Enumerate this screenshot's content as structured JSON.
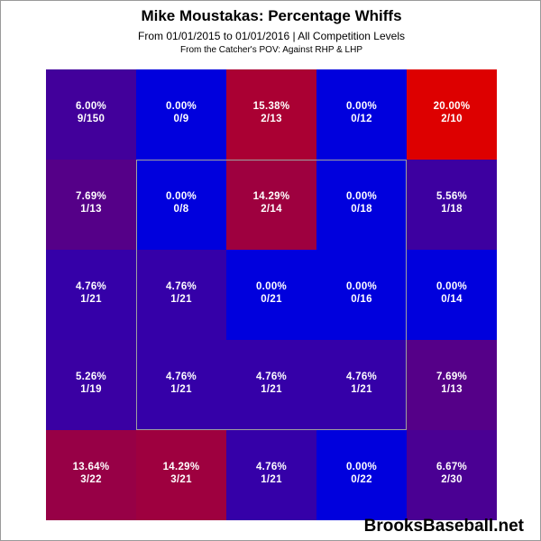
{
  "header": {
    "title": "Mike Moustakas: Percentage Whiffs",
    "subtitle": "From 01/01/2015 to 01/01/2016 | All Competition Levels",
    "subtitle2": "From the Catcher's POV:  Against RHP & LHP"
  },
  "watermark": "BrooksBaseball.net",
  "chart_data": {
    "type": "heatmap",
    "title": "Mike Moustakas: Percentage Whiffs",
    "rows": 5,
    "cols": 5,
    "strike_zone": {
      "rows": [
        1,
        3
      ],
      "cols": [
        1,
        3
      ]
    },
    "colors": {
      "low": "#0000dd",
      "high": "#dd0000"
    },
    "value_range": [
      0,
      20
    ],
    "cells": [
      [
        {
          "pct": 6.0,
          "pct_label": "6.00%",
          "count": "9/150"
        },
        {
          "pct": 0.0,
          "pct_label": "0.00%",
          "count": "0/9"
        },
        {
          "pct": 15.38,
          "pct_label": "15.38%",
          "count": "2/13"
        },
        {
          "pct": 0.0,
          "pct_label": "0.00%",
          "count": "0/12"
        },
        {
          "pct": 20.0,
          "pct_label": "20.00%",
          "count": "2/10"
        }
      ],
      [
        {
          "pct": 7.69,
          "pct_label": "7.69%",
          "count": "1/13"
        },
        {
          "pct": 0.0,
          "pct_label": "0.00%",
          "count": "0/8"
        },
        {
          "pct": 14.29,
          "pct_label": "14.29%",
          "count": "2/14"
        },
        {
          "pct": 0.0,
          "pct_label": "0.00%",
          "count": "0/18"
        },
        {
          "pct": 5.56,
          "pct_label": "5.56%",
          "count": "1/18"
        }
      ],
      [
        {
          "pct": 4.76,
          "pct_label": "4.76%",
          "count": "1/21"
        },
        {
          "pct": 4.76,
          "pct_label": "4.76%",
          "count": "1/21"
        },
        {
          "pct": 0.0,
          "pct_label": "0.00%",
          "count": "0/21"
        },
        {
          "pct": 0.0,
          "pct_label": "0.00%",
          "count": "0/16"
        },
        {
          "pct": 0.0,
          "pct_label": "0.00%",
          "count": "0/14"
        }
      ],
      [
        {
          "pct": 5.26,
          "pct_label": "5.26%",
          "count": "1/19"
        },
        {
          "pct": 4.76,
          "pct_label": "4.76%",
          "count": "1/21"
        },
        {
          "pct": 4.76,
          "pct_label": "4.76%",
          "count": "1/21"
        },
        {
          "pct": 4.76,
          "pct_label": "4.76%",
          "count": "1/21"
        },
        {
          "pct": 7.69,
          "pct_label": "7.69%",
          "count": "1/13"
        }
      ],
      [
        {
          "pct": 13.64,
          "pct_label": "13.64%",
          "count": "3/22"
        },
        {
          "pct": 14.29,
          "pct_label": "14.29%",
          "count": "3/21"
        },
        {
          "pct": 4.76,
          "pct_label": "4.76%",
          "count": "1/21"
        },
        {
          "pct": 0.0,
          "pct_label": "0.00%",
          "count": "0/22"
        },
        {
          "pct": 6.67,
          "pct_label": "6.67%",
          "count": "2/30"
        }
      ]
    ]
  }
}
